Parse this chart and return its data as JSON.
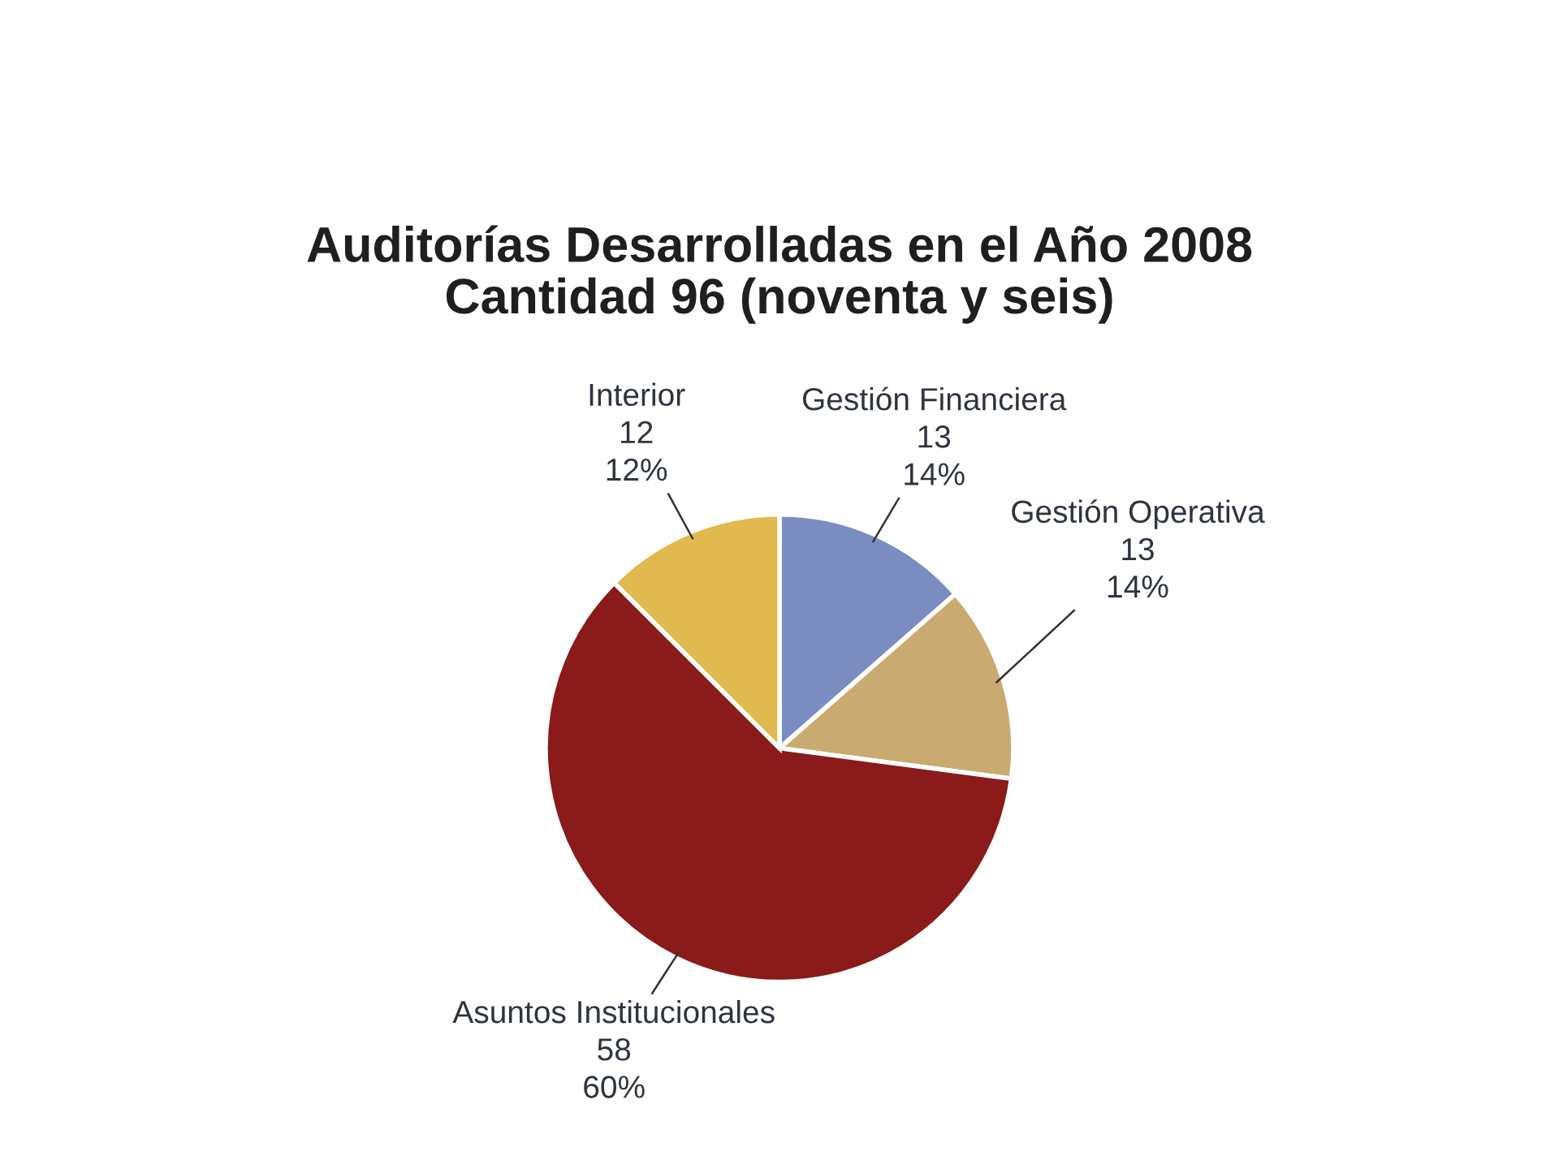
{
  "chart_data": {
    "type": "pie",
    "title": "Auditorías Desarrolladas en el Año 2008\nCantidad 96 (noventa y seis)",
    "categories": [
      "Gestión Financiera",
      "Gestión Operativa",
      "Asuntos Institucionales",
      "Interior"
    ],
    "values": [
      13,
      13,
      58,
      12
    ],
    "value_labels": [
      "13\n14%",
      "13\n14%",
      "58\n60%",
      "12\n12%"
    ],
    "colors": [
      "#7b8cc0",
      "#c9ab72",
      "#8b1a1a",
      "#e2b94f"
    ]
  }
}
